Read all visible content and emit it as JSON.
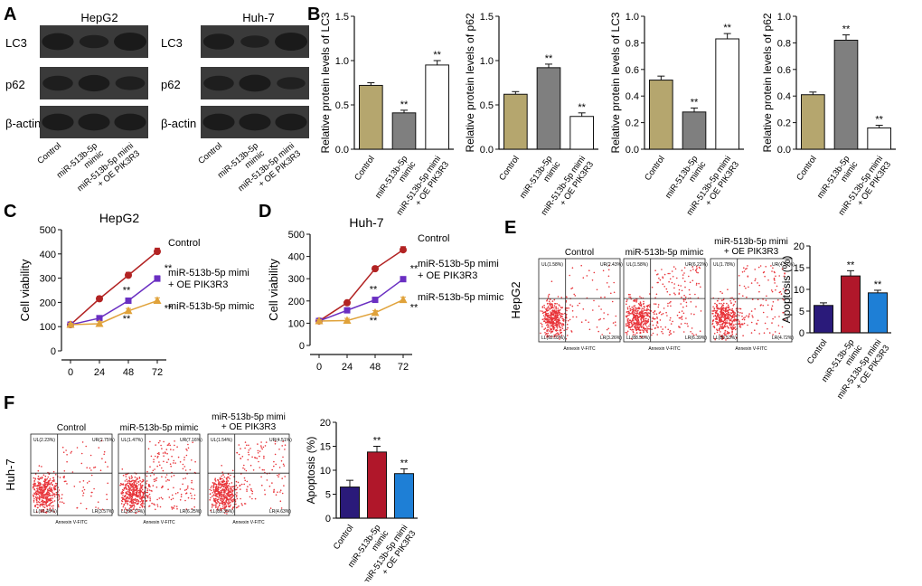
{
  "panel_letters": {
    "a": "A",
    "b": "B",
    "c": "C",
    "d": "D",
    "e": "E",
    "f": "F"
  },
  "colors": {
    "control_bar": "#b5a66e",
    "mimic_bar": "#7f7f7f",
    "oe_bar": "#ffffff",
    "apop_control": "#2a1a7a",
    "apop_mimic": "#b0172a",
    "apop_oe": "#1e7fd6",
    "line_control": "#b22323",
    "line_oe": "#6a2fc2",
    "line_mimic": "#e0a23a",
    "flow_dot": "#e8343a",
    "blot_band": "#1a1a1a",
    "blot_bg": "#3a3a3a"
  },
  "western": {
    "cell_lines": [
      "HepG2",
      "Huh-7"
    ],
    "rows": [
      "LC3",
      "p62",
      "β-actin"
    ],
    "lanes": [
      "Control",
      "miR-513b-5p\nmimic",
      "miR-513b-5p mimi\n+ OE PIK3R3"
    ]
  },
  "chart_data": [
    {
      "id": "B1",
      "type": "bar",
      "title": "",
      "categories": [
        "Control",
        "miR-513b-5p mimic",
        "miR-513b-5p mimi + OE PIK3R3"
      ],
      "values": [
        0.72,
        0.41,
        0.95
      ],
      "errors": [
        0.03,
        0.03,
        0.05
      ],
      "sig": [
        "",
        "**",
        "**"
      ],
      "ylabel": "Relative protein levels of LC3",
      "ylim": [
        0,
        1.5
      ],
      "yticks": [
        0.0,
        0.5,
        1.0,
        1.5
      ]
    },
    {
      "id": "B2",
      "type": "bar",
      "title": "",
      "categories": [
        "Control",
        "miR-513b-5p mimic",
        "miR-513b-5p mimi + OE PIK3R3"
      ],
      "values": [
        0.62,
        0.92,
        0.37
      ],
      "errors": [
        0.03,
        0.04,
        0.04
      ],
      "sig": [
        "",
        "**",
        "**"
      ],
      "ylabel": "Relative protein levels of p62",
      "ylim": [
        0,
        1.5
      ],
      "yticks": [
        0.0,
        0.5,
        1.0,
        1.5
      ]
    },
    {
      "id": "B3",
      "type": "bar",
      "title": "",
      "categories": [
        "Control",
        "miR-513b-5p mimic",
        "miR-513b-5p mimi + OE PIK3R3"
      ],
      "values": [
        0.52,
        0.28,
        0.83
      ],
      "errors": [
        0.03,
        0.03,
        0.04
      ],
      "sig": [
        "",
        "**",
        "**"
      ],
      "ylabel": "Relative protein levels of LC3",
      "ylim": [
        0,
        1.0
      ],
      "yticks": [
        0.0,
        0.2,
        0.4,
        0.6,
        0.8,
        1.0
      ]
    },
    {
      "id": "B4",
      "type": "bar",
      "title": "",
      "categories": [
        "Control",
        "miR-513b-5p mimic",
        "miR-513b-5p mimi + OE PIK3R3"
      ],
      "values": [
        0.41,
        0.82,
        0.16
      ],
      "errors": [
        0.02,
        0.04,
        0.02
      ],
      "sig": [
        "",
        "**",
        "**"
      ],
      "ylabel": "Relative protein levels of p62",
      "ylim": [
        0,
        1.0
      ],
      "yticks": [
        0.0,
        0.2,
        0.4,
        0.6,
        0.8,
        1.0
      ]
    },
    {
      "id": "C",
      "type": "line",
      "title": "HepG2",
      "x": [
        0,
        24,
        48,
        72
      ],
      "xlim": [
        0,
        72
      ],
      "ylabel": "Cell viability",
      "ylim": [
        0,
        500
      ],
      "yticks": [
        0,
        100,
        200,
        300,
        400,
        500
      ],
      "series": [
        {
          "name": "Control",
          "values": [
            108,
            215,
            312,
            410
          ],
          "errors": [
            6,
            10,
            12,
            14
          ],
          "sig": [
            "",
            "",
            "",
            ""
          ]
        },
        {
          "name": "miR-513b-5p mimi\n+ OE PIK3R3",
          "values": [
            108,
            135,
            207,
            298
          ],
          "errors": [
            6,
            8,
            10,
            12
          ],
          "sig": [
            "",
            "",
            "**",
            "**"
          ]
        },
        {
          "name": "miR-513b-5p mimic",
          "values": [
            108,
            112,
            165,
            207
          ],
          "errors": [
            6,
            10,
            10,
            12
          ],
          "sig": [
            "",
            "",
            "**",
            "**"
          ]
        }
      ]
    },
    {
      "id": "D",
      "type": "line",
      "title": "Huh-7",
      "x": [
        0,
        24,
        48,
        72
      ],
      "xlim": [
        0,
        72
      ],
      "ylabel": "Cell viability",
      "ylim": [
        0,
        500
      ],
      "yticks": [
        0,
        100,
        200,
        300,
        400,
        500
      ],
      "series": [
        {
          "name": "Control",
          "values": [
            110,
            192,
            345,
            430
          ],
          "errors": [
            6,
            8,
            10,
            14
          ],
          "sig": [
            "",
            "",
            "",
            ""
          ]
        },
        {
          "name": "miR-513b-5p mimi\n+ OE PIK3R3",
          "values": [
            110,
            158,
            205,
            298
          ],
          "errors": [
            6,
            8,
            10,
            10
          ],
          "sig": [
            "",
            "",
            "**",
            "**"
          ]
        },
        {
          "name": "miR-513b-5p mimic",
          "values": [
            110,
            112,
            147,
            205
          ],
          "errors": [
            6,
            10,
            10,
            12
          ],
          "sig": [
            "",
            "",
            "**",
            "**"
          ]
        }
      ]
    },
    {
      "id": "E",
      "type": "bar",
      "title": "",
      "categories": [
        "Control",
        "miR-513b-5p mimic",
        "miR-513b-5p mimi + OE PIK3R3"
      ],
      "values": [
        6.3,
        13.1,
        9.2
      ],
      "errors": [
        0.6,
        1.2,
        0.6
      ],
      "sig": [
        "",
        "**",
        "**"
      ],
      "ylabel": "Apoptosis (%)",
      "ylim": [
        0,
        20
      ],
      "yticks": [
        0,
        5,
        10,
        15,
        20
      ]
    },
    {
      "id": "F",
      "type": "bar",
      "title": "",
      "categories": [
        "Control",
        "miR-513b-5p mimic",
        "miR-513b-5p mimi + OE PIK3R3"
      ],
      "values": [
        6.5,
        13.8,
        9.3
      ],
      "errors": [
        1.4,
        1.2,
        1.0
      ],
      "sig": [
        "",
        "**",
        "**"
      ],
      "ylabel": "Apoptosis (%)",
      "ylim": [
        0,
        20
      ],
      "yticks": [
        0,
        5,
        10,
        15,
        20
      ]
    }
  ],
  "flow": {
    "xaxis_label": "Annexin V-FITC",
    "e": {
      "row_label": "HepG2",
      "plots": [
        {
          "title": "Control",
          "q": [
            "UL(1.58%)",
            "UR(2.43%)",
            "LL(92.52%)",
            "LR(3.26%)"
          ]
        },
        {
          "title": "miR-513b-5p mimic",
          "q": [
            "UL(1.58%)",
            "UR(6.22%)",
            "LL(88.55%)",
            "LR(6.39%)"
          ]
        },
        {
          "title": "miR-513b-5p mimi\n+ OE PIK3R3",
          "q": [
            "UL(1.78%)",
            "UR(4.57%)",
            "LL(88.53%)",
            "LR(4.72%)"
          ]
        }
      ]
    },
    "f": {
      "row_label": "Huh-7",
      "plots": [
        {
          "title": "Control",
          "q": [
            "UL(2.23%)",
            "UR(2.75%)",
            "LL(91.49%)",
            "LR(3.57%)"
          ]
        },
        {
          "title": "miR-513b-5p mimic",
          "q": [
            "UL(1.47%)",
            "UR(7.16%)",
            "LL(85.37%)",
            "LR(6.25%)"
          ]
        },
        {
          "title": "miR-513b-5p mimi\n+ OE PIK3R3",
          "q": [
            "UL(1.54%)",
            "UR(4.51%)",
            "LL(89.35%)",
            "LR(4.63%)"
          ]
        }
      ]
    }
  }
}
